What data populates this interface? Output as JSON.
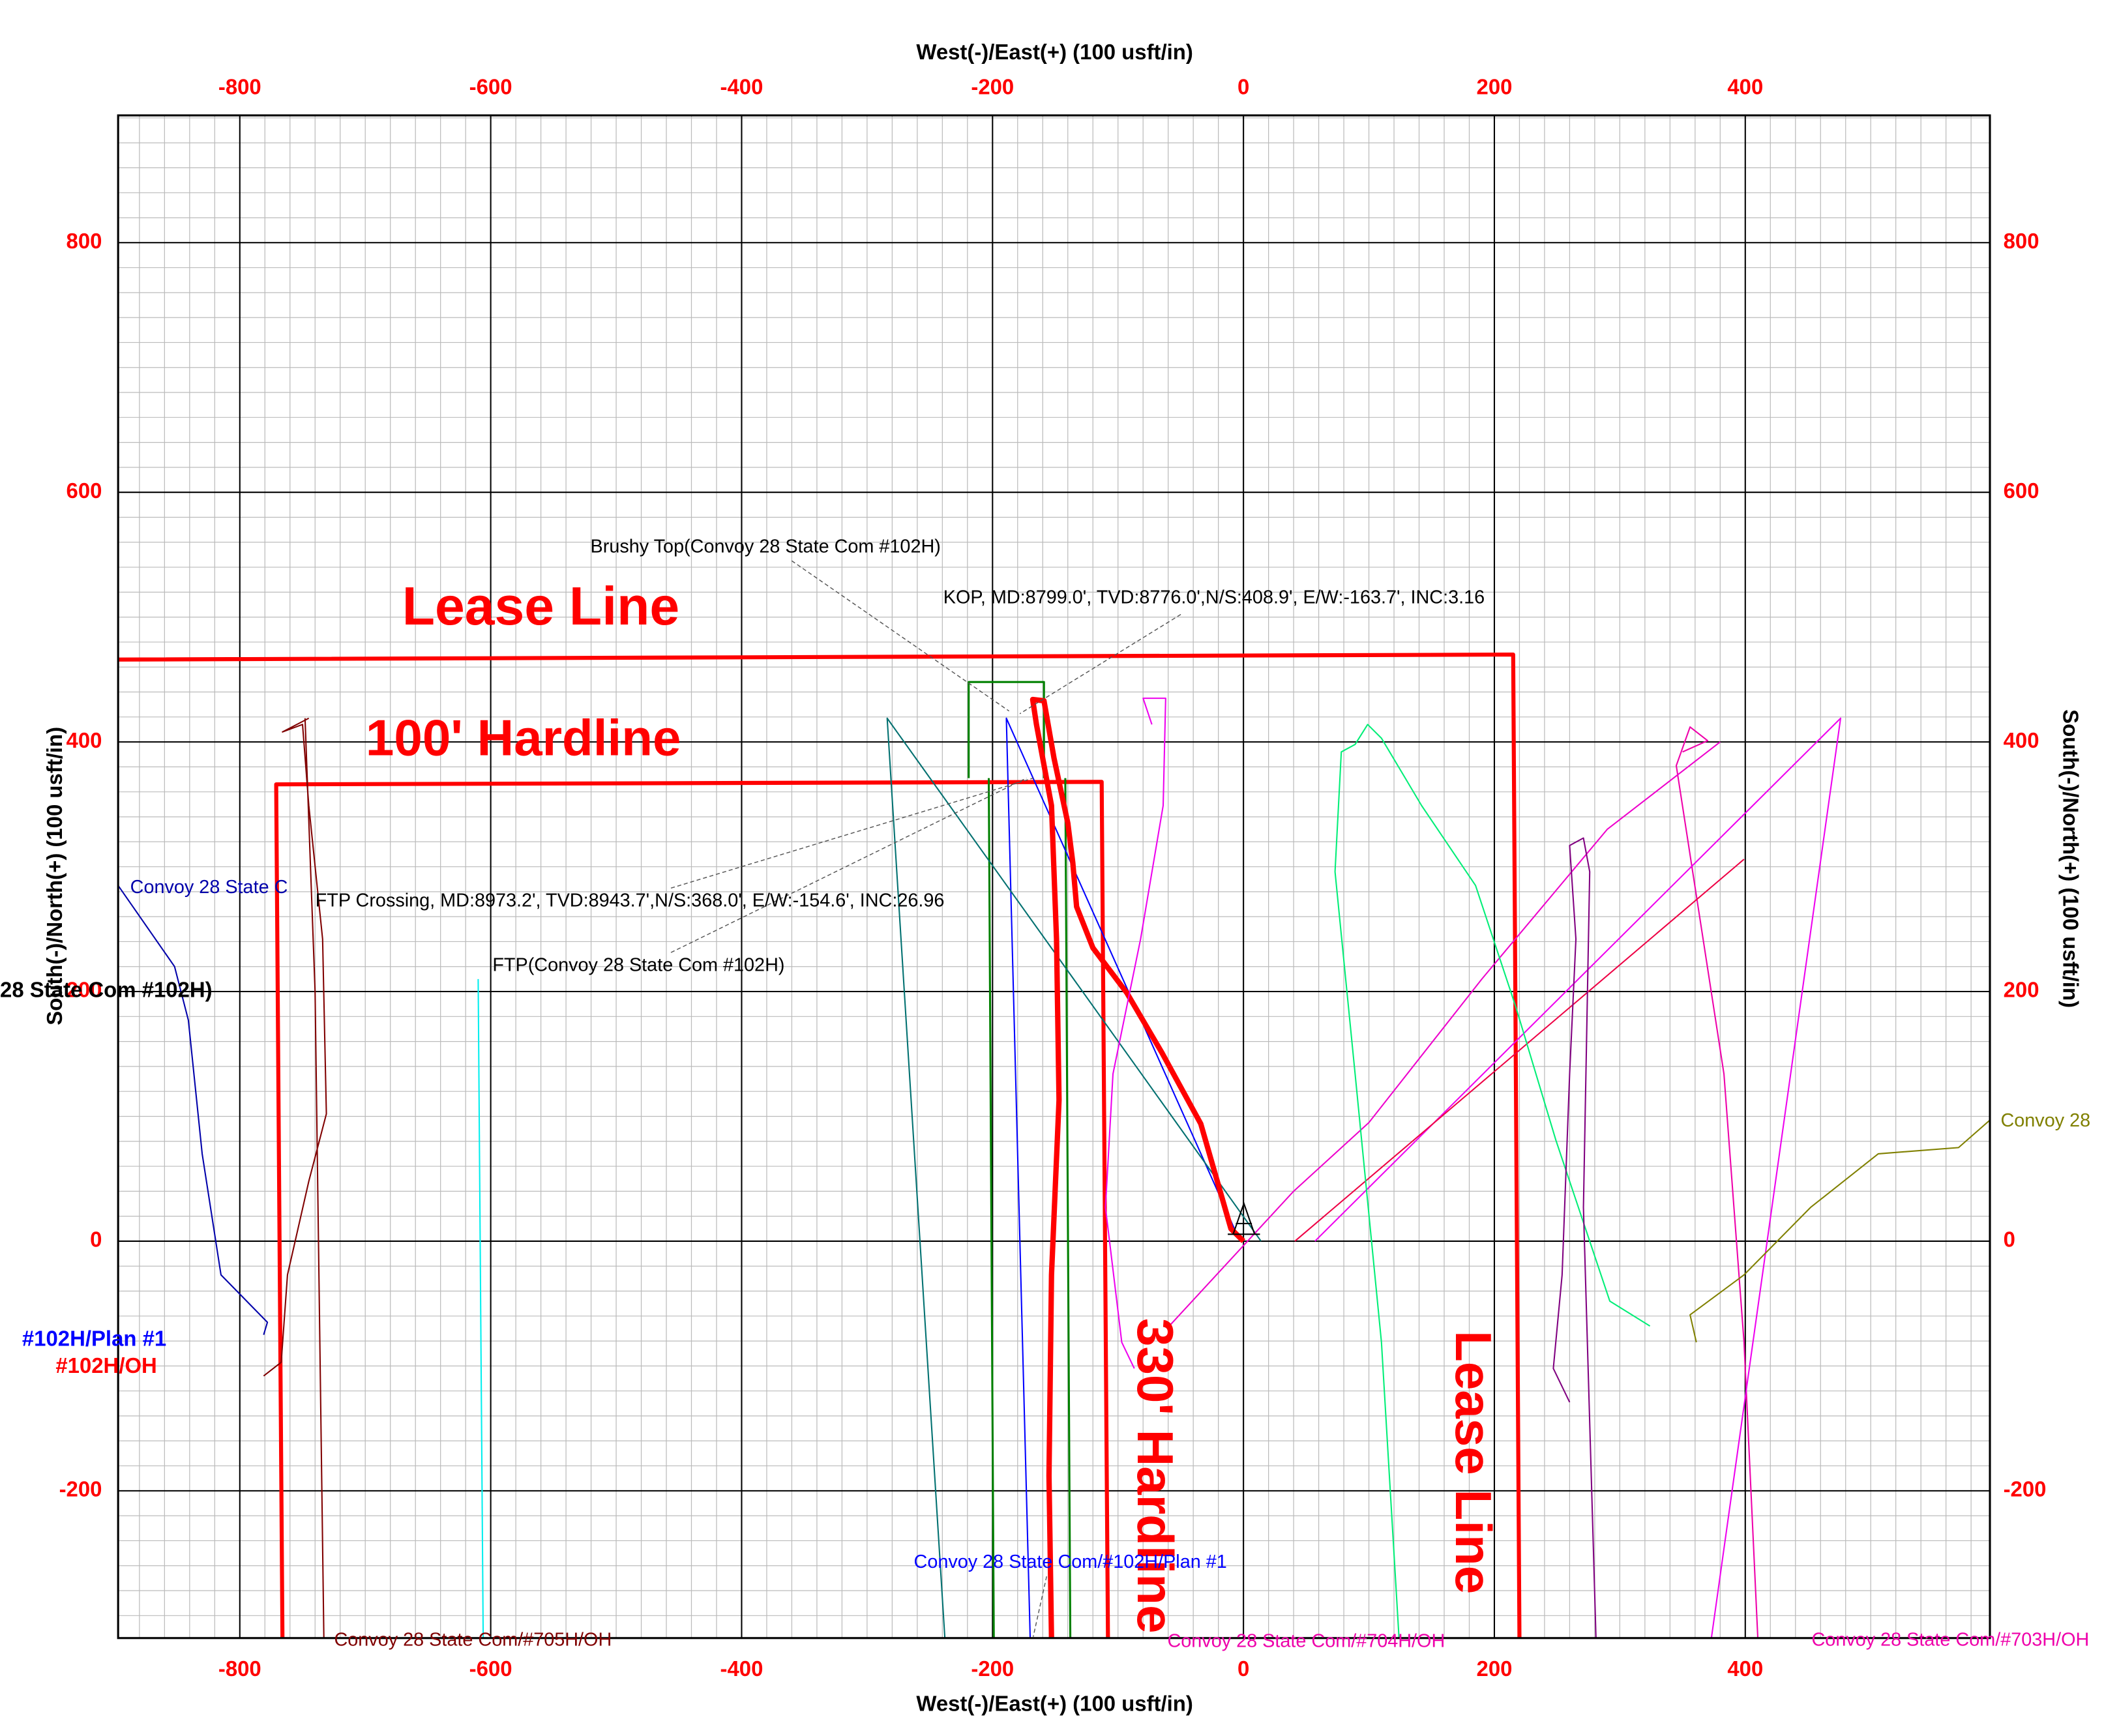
{
  "chart_data": {
    "type": "line",
    "x_title": "West(-)/East(+) (100 usft/in)",
    "y_title": "South(-)/North(+) (100 usft/in)",
    "xlim": [
      -897,
      595
    ],
    "ylim": [
      -318,
      902
    ],
    "xticks": [
      -800,
      -600,
      -400,
      -200,
      0,
      200,
      400
    ],
    "yticks": [
      -200,
      0,
      200,
      400,
      600,
      800
    ],
    "grid": true,
    "minor_grid_step": 20,
    "tick_color": "#ff0000",
    "series": [
      {
        "color": "#ff0000",
        "width": 3,
        "x": [
          -897,
          215,
          220
        ],
        "y": [
          466,
          470,
          -318
        ]
      },
      {
        "color": "#ff0000",
        "width": 3,
        "x": [
          -766,
          -771,
          -113,
          -108
        ],
        "y": [
          -318,
          366,
          368,
          -318
        ]
      },
      {
        "color": "#008000",
        "width": 1.5,
        "x": [
          -219,
          -219,
          -159,
          -159,
          null,
          -203,
          -199,
          null,
          -142,
          -138
        ],
        "y": [
          371,
          448,
          448,
          371,
          null,
          371,
          -318,
          null,
          371,
          -318
        ]
      },
      {
        "color": "#0000ff",
        "width": 1,
        "x": [
          -5,
          -189,
          -170
        ],
        "y": [
          5,
          419,
          -318
        ]
      },
      {
        "color": "#007070",
        "width": 1,
        "x": [
          14,
          -284,
          -238
        ],
        "y": [
          0,
          419,
          -318
        ]
      },
      {
        "color": "#ff0000",
        "width": 4,
        "x": [
          0,
          -10,
          -34,
          -65,
          -93,
          -120,
          -133,
          -136,
          -140,
          -151,
          -159,
          -168,
          -165,
          -153,
          -149,
          -147,
          -153,
          -155,
          -153
        ],
        "y": [
          0,
          10,
          94,
          151,
          199,
          235,
          268,
          303,
          335,
          387,
          433,
          434,
          414,
          349,
          242,
          113,
          -27,
          -188,
          -318
        ]
      },
      {
        "color": "#ee00ee",
        "width": 1,
        "x": [
          -87,
          -97,
          -110,
          -104,
          -82,
          -64,
          -62,
          -80,
          -73
        ],
        "y": [
          -102,
          -81,
          27,
          134,
          242,
          349,
          435,
          435,
          414
        ]
      },
      {
        "color": "#ee00aa",
        "width": 1,
        "x": [
          410,
          399,
          383,
          345,
          356,
          370,
          350
        ],
        "y": [
          -318,
          -81,
          134,
          381,
          412,
          401,
          392
        ]
      },
      {
        "color": "#ee00cc",
        "width": 1,
        "x": [
          -61,
          40,
          100,
          190,
          290,
          380
        ],
        "y": [
          -70,
          40,
          95,
          210,
          330,
          400
        ]
      },
      {
        "color": "#ee00ee",
        "width": 1,
        "x": [
          57,
          476,
          373
        ],
        "y": [
          0,
          419,
          -318
        ]
      },
      {
        "color": "#ee0044",
        "width": 1,
        "x": [
          41,
          399
        ],
        "y": [
          0,
          306
        ]
      },
      {
        "color": "#00ee77",
        "width": 1,
        "x": [
          324,
          292,
          249,
          217,
          185,
          142,
          110,
          99,
          89,
          78,
          73,
          89,
          110,
          124
        ],
        "y": [
          -68,
          -48,
          81,
          188,
          285,
          349,
          403,
          414,
          398,
          392,
          296,
          134,
          -81,
          -318
        ]
      },
      {
        "color": "#800080",
        "width": 1,
        "x": [
          260,
          247,
          254,
          260,
          265,
          260,
          271,
          276,
          271,
          281
        ],
        "y": [
          -129,
          -102,
          -27,
          134,
          242,
          317,
          323,
          296,
          27,
          -318
        ]
      },
      {
        "color": "#808000",
        "width": 1,
        "x": [
          361,
          356,
          399,
          452,
          506,
          570,
          595
        ],
        "y": [
          -81,
          -59,
          -27,
          27,
          70,
          75,
          97
        ]
      },
      {
        "color": "#0000aa",
        "width": 1,
        "x": [
          -897,
          -852,
          -841,
          -830,
          -815,
          -778,
          -781
        ],
        "y": [
          285,
          220,
          177,
          70,
          -27,
          -65,
          -75
        ]
      },
      {
        "color": "#800000",
        "width": 1,
        "x": [
          -781,
          -767,
          -762,
          -745,
          -731,
          -734,
          -745,
          -750,
          -766,
          -745,
          null,
          -748,
          -740,
          -733
        ],
        "y": [
          -108,
          -97,
          -27,
          48,
          102,
          242,
          349,
          414,
          408,
          419,
          null,
          419,
          200,
          -318
        ]
      },
      {
        "color": "#00eeee",
        "width": 1,
        "x": [
          -610,
          -606
        ],
        "y": [
          210,
          -318
        ]
      }
    ],
    "annotations": [
      "Lease Line",
      "100' Hardline",
      "330' Hardline",
      "Lease Line",
      "Brushy Top(Convoy 28 State Com #102H)",
      "KOP, MD:8799.0', TVD:8776.0',N/S:408.9', E/W:-163.7', INC:3.16",
      "FTP Crossing, MD:8973.2', TVD:8943.7',N/S:368.0', E/W:-154.6', INC:26.96",
      "FTP(Convoy 28 State Com #102H)",
      "Convoy 28 State Com/#102H/Plan #1",
      "Convoy 28 State Com/#705H/OH",
      "Convoy 28 State Com/#703H/OH",
      "Convoy 28",
      "Convoy 28 State C",
      "#102H/Plan #1",
      "#102H/OH",
      "28 State Com #102H)",
      "Convoy 28 State Com/#704H/OH"
    ]
  }
}
